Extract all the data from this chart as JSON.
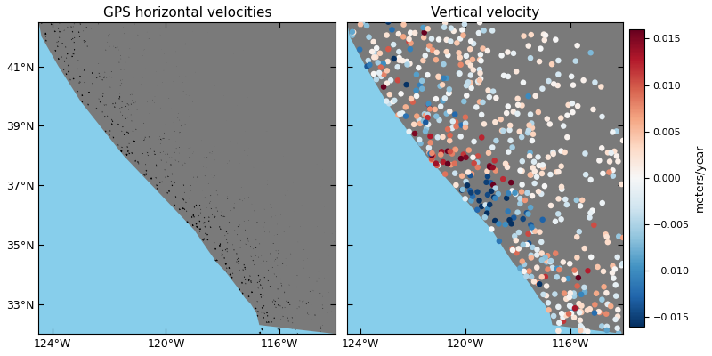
{
  "title_left": "GPS horizontal velocities",
  "title_right": "Vertical velocity",
  "colorbar_label": "meters/year",
  "xlim": [
    -124.5,
    -114.0
  ],
  "ylim": [
    32.0,
    42.5
  ],
  "xticks": [
    -124,
    -120,
    -116
  ],
  "xtick_labels": [
    "124°W",
    "120°W",
    "116°W"
  ],
  "yticks": [
    33,
    35,
    37,
    39,
    41
  ],
  "ytick_labels": [
    "33°N",
    "35°N",
    "37°N",
    "39°N",
    "41°N"
  ],
  "ocean_color": "#87CEEB",
  "land_color": "#7a7a7a",
  "vmin": -0.016,
  "vmax": 0.016,
  "colormap": "RdBu_r",
  "seed": 42,
  "coast_lon": [
    -124.4,
    -124.1,
    -123.8,
    -123.4,
    -123.0,
    -122.5,
    -122.0,
    -121.5,
    -121.0,
    -120.5,
    -120.0,
    -119.5,
    -119.0,
    -118.5,
    -118.2,
    -117.9,
    -117.5,
    -117.2,
    -117.0,
    -116.8,
    -116.7
  ],
  "coast_lat": [
    42.0,
    41.5,
    41.0,
    40.4,
    39.8,
    39.2,
    38.6,
    38.0,
    37.5,
    37.0,
    36.5,
    36.0,
    35.5,
    34.8,
    34.4,
    34.1,
    33.6,
    33.2,
    33.0,
    32.7,
    32.3
  ]
}
